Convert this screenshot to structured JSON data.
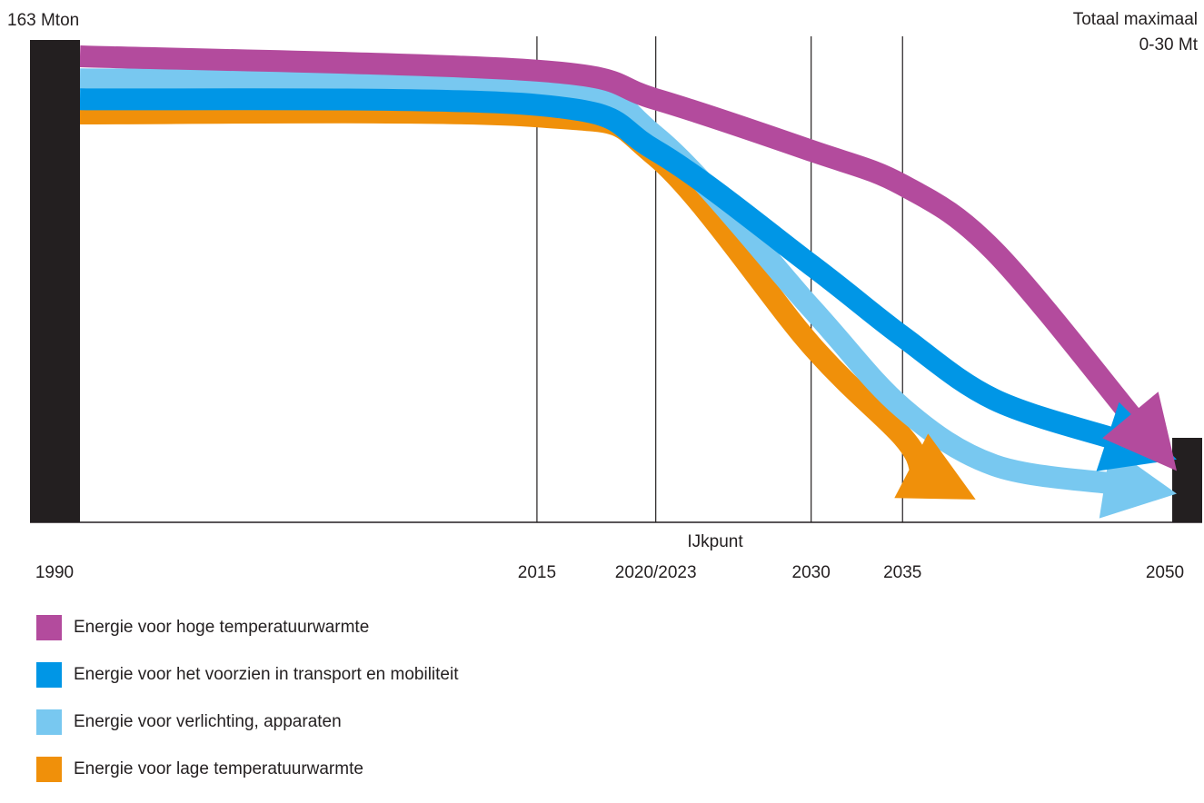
{
  "chart_data": {
    "type": "area",
    "start_label": "163 Mton",
    "target_label_line1": "Totaal maximaal",
    "target_label_line2": "0-30 Mt",
    "milestone_label": "IJkpunt",
    "x_ticks": [
      {
        "label": "1990",
        "year": 1990,
        "color": "#f7a11a"
      },
      {
        "label": "2015",
        "year": 2015
      },
      {
        "label": "2020/2023",
        "year": 2021.5
      },
      {
        "label": "2030",
        "year": 2030
      },
      {
        "label": "2035",
        "year": 2035
      },
      {
        "label": "2050",
        "year": 2050
      }
    ],
    "series": [
      {
        "name": "Energie voor hoge temperatuurwarmte",
        "color": "#b34b9d",
        "x": [
          1990,
          2015,
          2021.5,
          2030,
          2035,
          2040,
          2050
        ],
        "y": [
          163,
          158,
          148,
          130,
          118,
          95,
          18
        ]
      },
      {
        "name": "Energie voor het voorzien in transport en mobiliteit",
        "color": "#0096e6",
        "x": [
          1990,
          2015,
          2021.5,
          2030,
          2035,
          2040,
          2050
        ],
        "y": [
          148,
          146,
          130,
          90,
          65,
          43,
          22
        ]
      },
      {
        "name": "Energie voor verlichting, apparaten",
        "color": "#78c8f0",
        "x": [
          1990,
          2015,
          2021.5,
          2030,
          2035,
          2040,
          2050
        ],
        "y": [
          155,
          153,
          135,
          75,
          40,
          20,
          10
        ]
      },
      {
        "name": "Energie voor lage temperatuurwarmte",
        "color": "#f0900a",
        "x": [
          1990,
          2015,
          2021.5,
          2030,
          2035,
          2036,
          2039
        ],
        "y": [
          143,
          142,
          128,
          62,
          30,
          18,
          8
        ]
      }
    ]
  }
}
